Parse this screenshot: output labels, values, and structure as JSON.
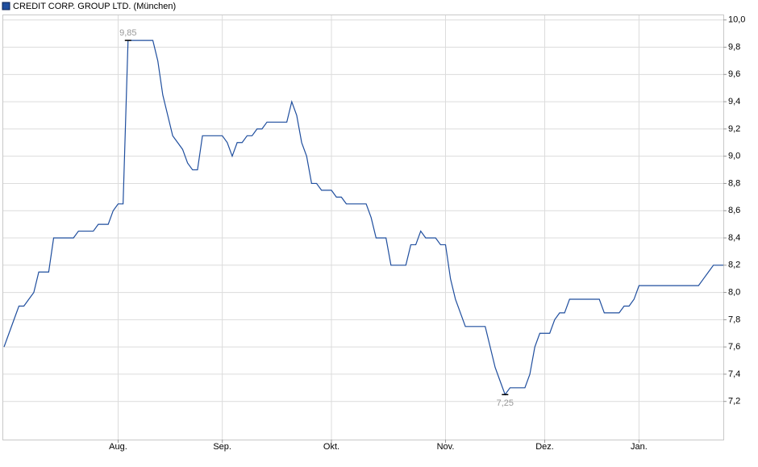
{
  "chart_data": {
    "type": "line",
    "categories": [
      null,
      null,
      null,
      null,
      null,
      null,
      null,
      null,
      null,
      null,
      null,
      null,
      null,
      null,
      null,
      null,
      null,
      null,
      null,
      null,
      null,
      null,
      null,
      "Aug.",
      null,
      null,
      null,
      null,
      null,
      null,
      null,
      null,
      null,
      null,
      null,
      null,
      null,
      null,
      null,
      null,
      null,
      null,
      null,
      null,
      "Sep.",
      null,
      null,
      null,
      null,
      null,
      null,
      null,
      null,
      null,
      null,
      null,
      null,
      null,
      null,
      null,
      null,
      null,
      null,
      null,
      null,
      null,
      "Okt.",
      null,
      null,
      null,
      null,
      null,
      null,
      null,
      null,
      null,
      null,
      null,
      null,
      null,
      null,
      null,
      null,
      null,
      null,
      null,
      null,
      null,
      null,
      "Nov.",
      null,
      null,
      null,
      null,
      null,
      null,
      null,
      null,
      null,
      null,
      null,
      null,
      null,
      null,
      null,
      null,
      null,
      null,
      null,
      "Dez.",
      null,
      null,
      null,
      null,
      null,
      null,
      null,
      null,
      null,
      null,
      null,
      null,
      null,
      null,
      null,
      null,
      null,
      null,
      "Jan.",
      null,
      null,
      null,
      null,
      null,
      null,
      null,
      null,
      null,
      null,
      null,
      null,
      null,
      null,
      null,
      null,
      null
    ],
    "series": [
      {
        "name": "CREDIT CORP. GROUP LTD. (München)",
        "color": "#1f4e9e",
        "values": [
          7.6,
          7.7,
          7.8,
          7.9,
          7.9,
          7.95,
          8.0,
          8.15,
          8.15,
          8.15,
          8.4,
          8.4,
          8.4,
          8.4,
          8.4,
          8.45,
          8.45,
          8.45,
          8.45,
          8.5,
          8.5,
          8.5,
          8.6,
          8.65,
          8.65,
          9.85,
          9.85,
          9.85,
          9.85,
          9.85,
          9.85,
          9.7,
          9.45,
          9.3,
          9.15,
          9.1,
          9.05,
          8.95,
          8.9,
          8.9,
          9.15,
          9.15,
          9.15,
          9.15,
          9.15,
          9.1,
          9.0,
          9.1,
          9.1,
          9.15,
          9.15,
          9.2,
          9.2,
          9.25,
          9.25,
          9.25,
          9.25,
          9.25,
          9.4,
          9.3,
          9.1,
          9.0,
          8.8,
          8.8,
          8.75,
          8.75,
          8.75,
          8.7,
          8.7,
          8.65,
          8.65,
          8.65,
          8.65,
          8.65,
          8.55,
          8.4,
          8.4,
          8.4,
          8.2,
          8.2,
          8.2,
          8.2,
          8.35,
          8.35,
          8.45,
          8.4,
          8.4,
          8.4,
          8.35,
          8.35,
          8.1,
          7.95,
          7.85,
          7.75,
          7.75,
          7.75,
          7.75,
          7.75,
          7.6,
          7.45,
          7.35,
          7.25,
          7.3,
          7.3,
          7.3,
          7.3,
          7.4,
          7.6,
          7.7,
          7.7,
          7.7,
          7.8,
          7.85,
          7.85,
          7.95,
          7.95,
          7.95,
          7.95,
          7.95,
          7.95,
          7.95,
          7.85,
          7.85,
          7.85,
          7.85,
          7.9,
          7.9,
          7.95,
          8.05,
          8.05,
          8.05,
          8.05,
          8.05,
          8.05,
          8.05,
          8.05,
          8.05,
          8.05,
          8.05,
          8.05,
          8.05,
          8.1,
          8.15,
          8.2,
          8.2,
          8.2
        ],
        "value_labels": [
          null,
          null,
          null,
          null,
          null,
          null,
          null,
          null,
          null,
          null,
          null,
          null,
          null,
          null,
          null,
          null,
          null,
          null,
          null,
          null,
          null,
          null,
          null,
          null,
          null,
          "9,85",
          null,
          null,
          null,
          null,
          null,
          null,
          null,
          null,
          null,
          null,
          null,
          null,
          null,
          null,
          null,
          null,
          null,
          null,
          null,
          null,
          null,
          null,
          null,
          null,
          null,
          null,
          null,
          null,
          null,
          null,
          null,
          null,
          null,
          null,
          null,
          null,
          null,
          null,
          null,
          null,
          null,
          null,
          null,
          null,
          null,
          null,
          null,
          null,
          null,
          null,
          null,
          null,
          null,
          null,
          null,
          null,
          null,
          null,
          null,
          null,
          null,
          null,
          null,
          null,
          null,
          null,
          null,
          null,
          null,
          null,
          null,
          null,
          null,
          null,
          null,
          "7,25",
          null,
          null,
          null,
          null,
          null,
          null,
          null,
          null,
          null,
          null,
          null,
          null,
          null,
          null,
          null,
          null,
          null,
          null,
          null,
          null,
          null,
          null,
          null,
          null,
          null,
          null,
          null,
          null,
          null,
          null,
          null,
          null,
          null,
          null,
          null,
          null,
          null,
          null,
          null,
          null,
          null,
          null,
          null,
          null
        ]
      }
    ],
    "ylim": [
      6.92,
      10.04
    ],
    "yticks": [
      {
        "value": 7.2,
        "label": "7,2"
      },
      {
        "value": 7.4,
        "label": "7,4"
      },
      {
        "value": 7.6,
        "label": "7,6"
      },
      {
        "value": 7.8,
        "label": "7,8"
      },
      {
        "value": 8.0,
        "label": "8,0"
      },
      {
        "value": 8.2,
        "label": "8,2"
      },
      {
        "value": 8.4,
        "label": "8,4"
      },
      {
        "value": 8.6,
        "label": "8,6"
      },
      {
        "value": 8.8,
        "label": "8,8"
      },
      {
        "value": 9.0,
        "label": "9,0"
      },
      {
        "value": 9.2,
        "label": "9,2"
      },
      {
        "value": 9.4,
        "label": "9,4"
      },
      {
        "value": 9.6,
        "label": "9,6"
      },
      {
        "value": 9.8,
        "label": "9,8"
      },
      {
        "value": 10.0,
        "label": "10,0"
      }
    ],
    "grid": true
  }
}
